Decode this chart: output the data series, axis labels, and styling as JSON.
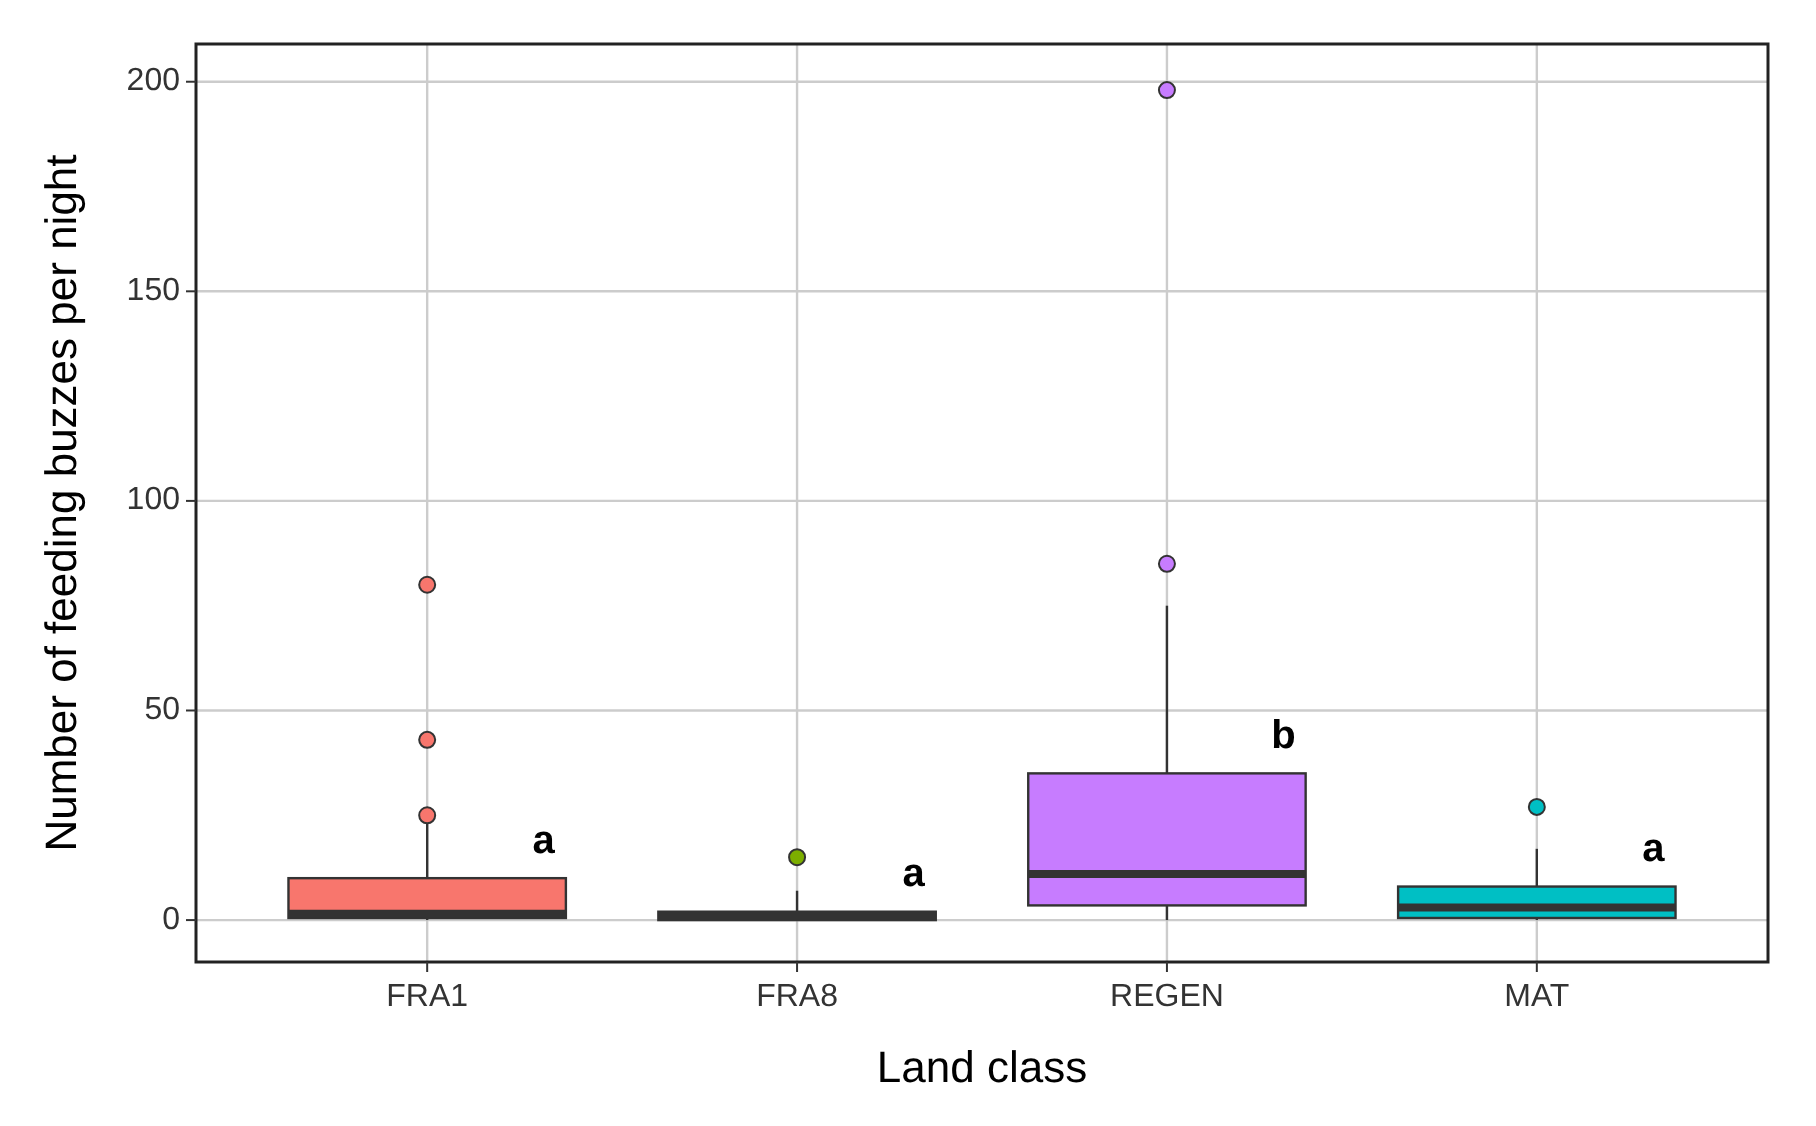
{
  "chart_data": {
    "type": "box",
    "xlabel": "Land class",
    "ylabel": "Number of feeding buzzes per night",
    "categories": [
      "FRA1",
      "FRA8",
      "REGEN",
      "MAT"
    ],
    "colors": [
      "#f8766d",
      "#7cae00",
      "#c77cff",
      "#00bfc4"
    ],
    "boxes": [
      {
        "low": 0,
        "q1": 0.5,
        "median": 1.5,
        "q3": 10,
        "high": 23,
        "outliers": [
          25,
          43,
          80
        ]
      },
      {
        "low": 0,
        "q1": 0,
        "median": 1,
        "q3": 2,
        "high": 7,
        "outliers": [
          15
        ]
      },
      {
        "low": 0,
        "q1": 3.5,
        "median": 11,
        "q3": 35,
        "high": 75,
        "outliers": [
          85,
          198
        ]
      },
      {
        "low": 0,
        "q1": 0.5,
        "median": 3,
        "q3": 8,
        "high": 17,
        "outliers": [
          27
        ]
      }
    ],
    "ylim": [
      -10,
      209
    ],
    "yticks": [
      0,
      50,
      100,
      150,
      200
    ],
    "grid": true,
    "annotations": [
      "a",
      "a",
      "b",
      "a"
    ]
  }
}
